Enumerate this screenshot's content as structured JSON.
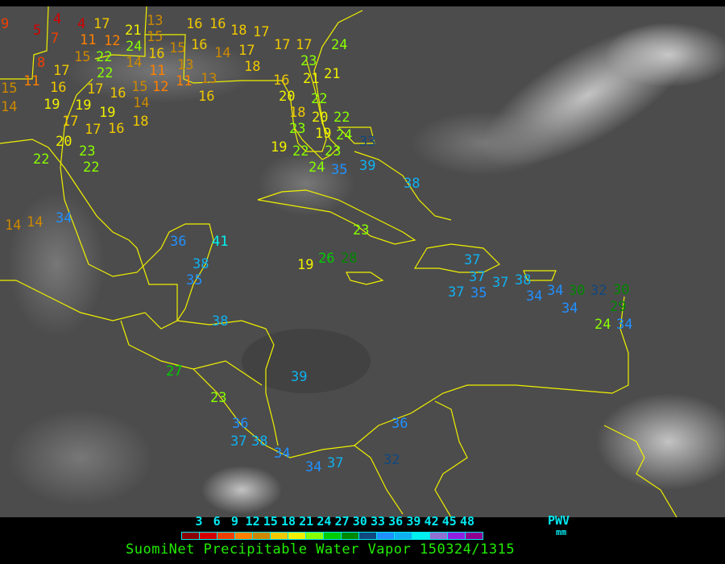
{
  "legend": {
    "ticks": [
      "3",
      "6",
      "9",
      "12",
      "15",
      "18",
      "21",
      "24",
      "27",
      "30",
      "33",
      "36",
      "39",
      "42",
      "45",
      "48"
    ],
    "colors": [
      "#8b0000",
      "#d40000",
      "#f04000",
      "#ff8000",
      "#cc8800",
      "#f0c800",
      "#f0f000",
      "#88ff00",
      "#00cc00",
      "#008800",
      "#104880",
      "#2090ff",
      "#10b0f0",
      "#00f0f0",
      "#9070d0",
      "#9020e0",
      "#900090"
    ],
    "parameter": "PWV",
    "unit": "mm"
  },
  "title": "SuomiNet Precipitable Water Vapor 150324/1315",
  "map": {
    "background": "#4a4a4a",
    "boundary_color": "#f0f000",
    "station_values": [
      9,
      5,
      4,
      4,
      7,
      8,
      11,
      17,
      12,
      22,
      24,
      21,
      15,
      13,
      15,
      16,
      14,
      15,
      13,
      11,
      11,
      17,
      22,
      17,
      16,
      11,
      16,
      15,
      14,
      12,
      13,
      16,
      19,
      19,
      19,
      16,
      18,
      17,
      14,
      15,
      17,
      20,
      22,
      23,
      22,
      14,
      14,
      16,
      16,
      18,
      17,
      14,
      16,
      17,
      17,
      18,
      17,
      20,
      16,
      21,
      24,
      23,
      21,
      22,
      18,
      20,
      23,
      19,
      22,
      24,
      23,
      22,
      24,
      19,
      35,
      33,
      39,
      38,
      34,
      36,
      41,
      38,
      35,
      38,
      23,
      37,
      19,
      26,
      28,
      37,
      37,
      37,
      35,
      38,
      34,
      34,
      30,
      34,
      32,
      30,
      29,
      34,
      24,
      27,
      23,
      36,
      37,
      38,
      34,
      34,
      37,
      32,
      36,
      39
    ]
  }
}
